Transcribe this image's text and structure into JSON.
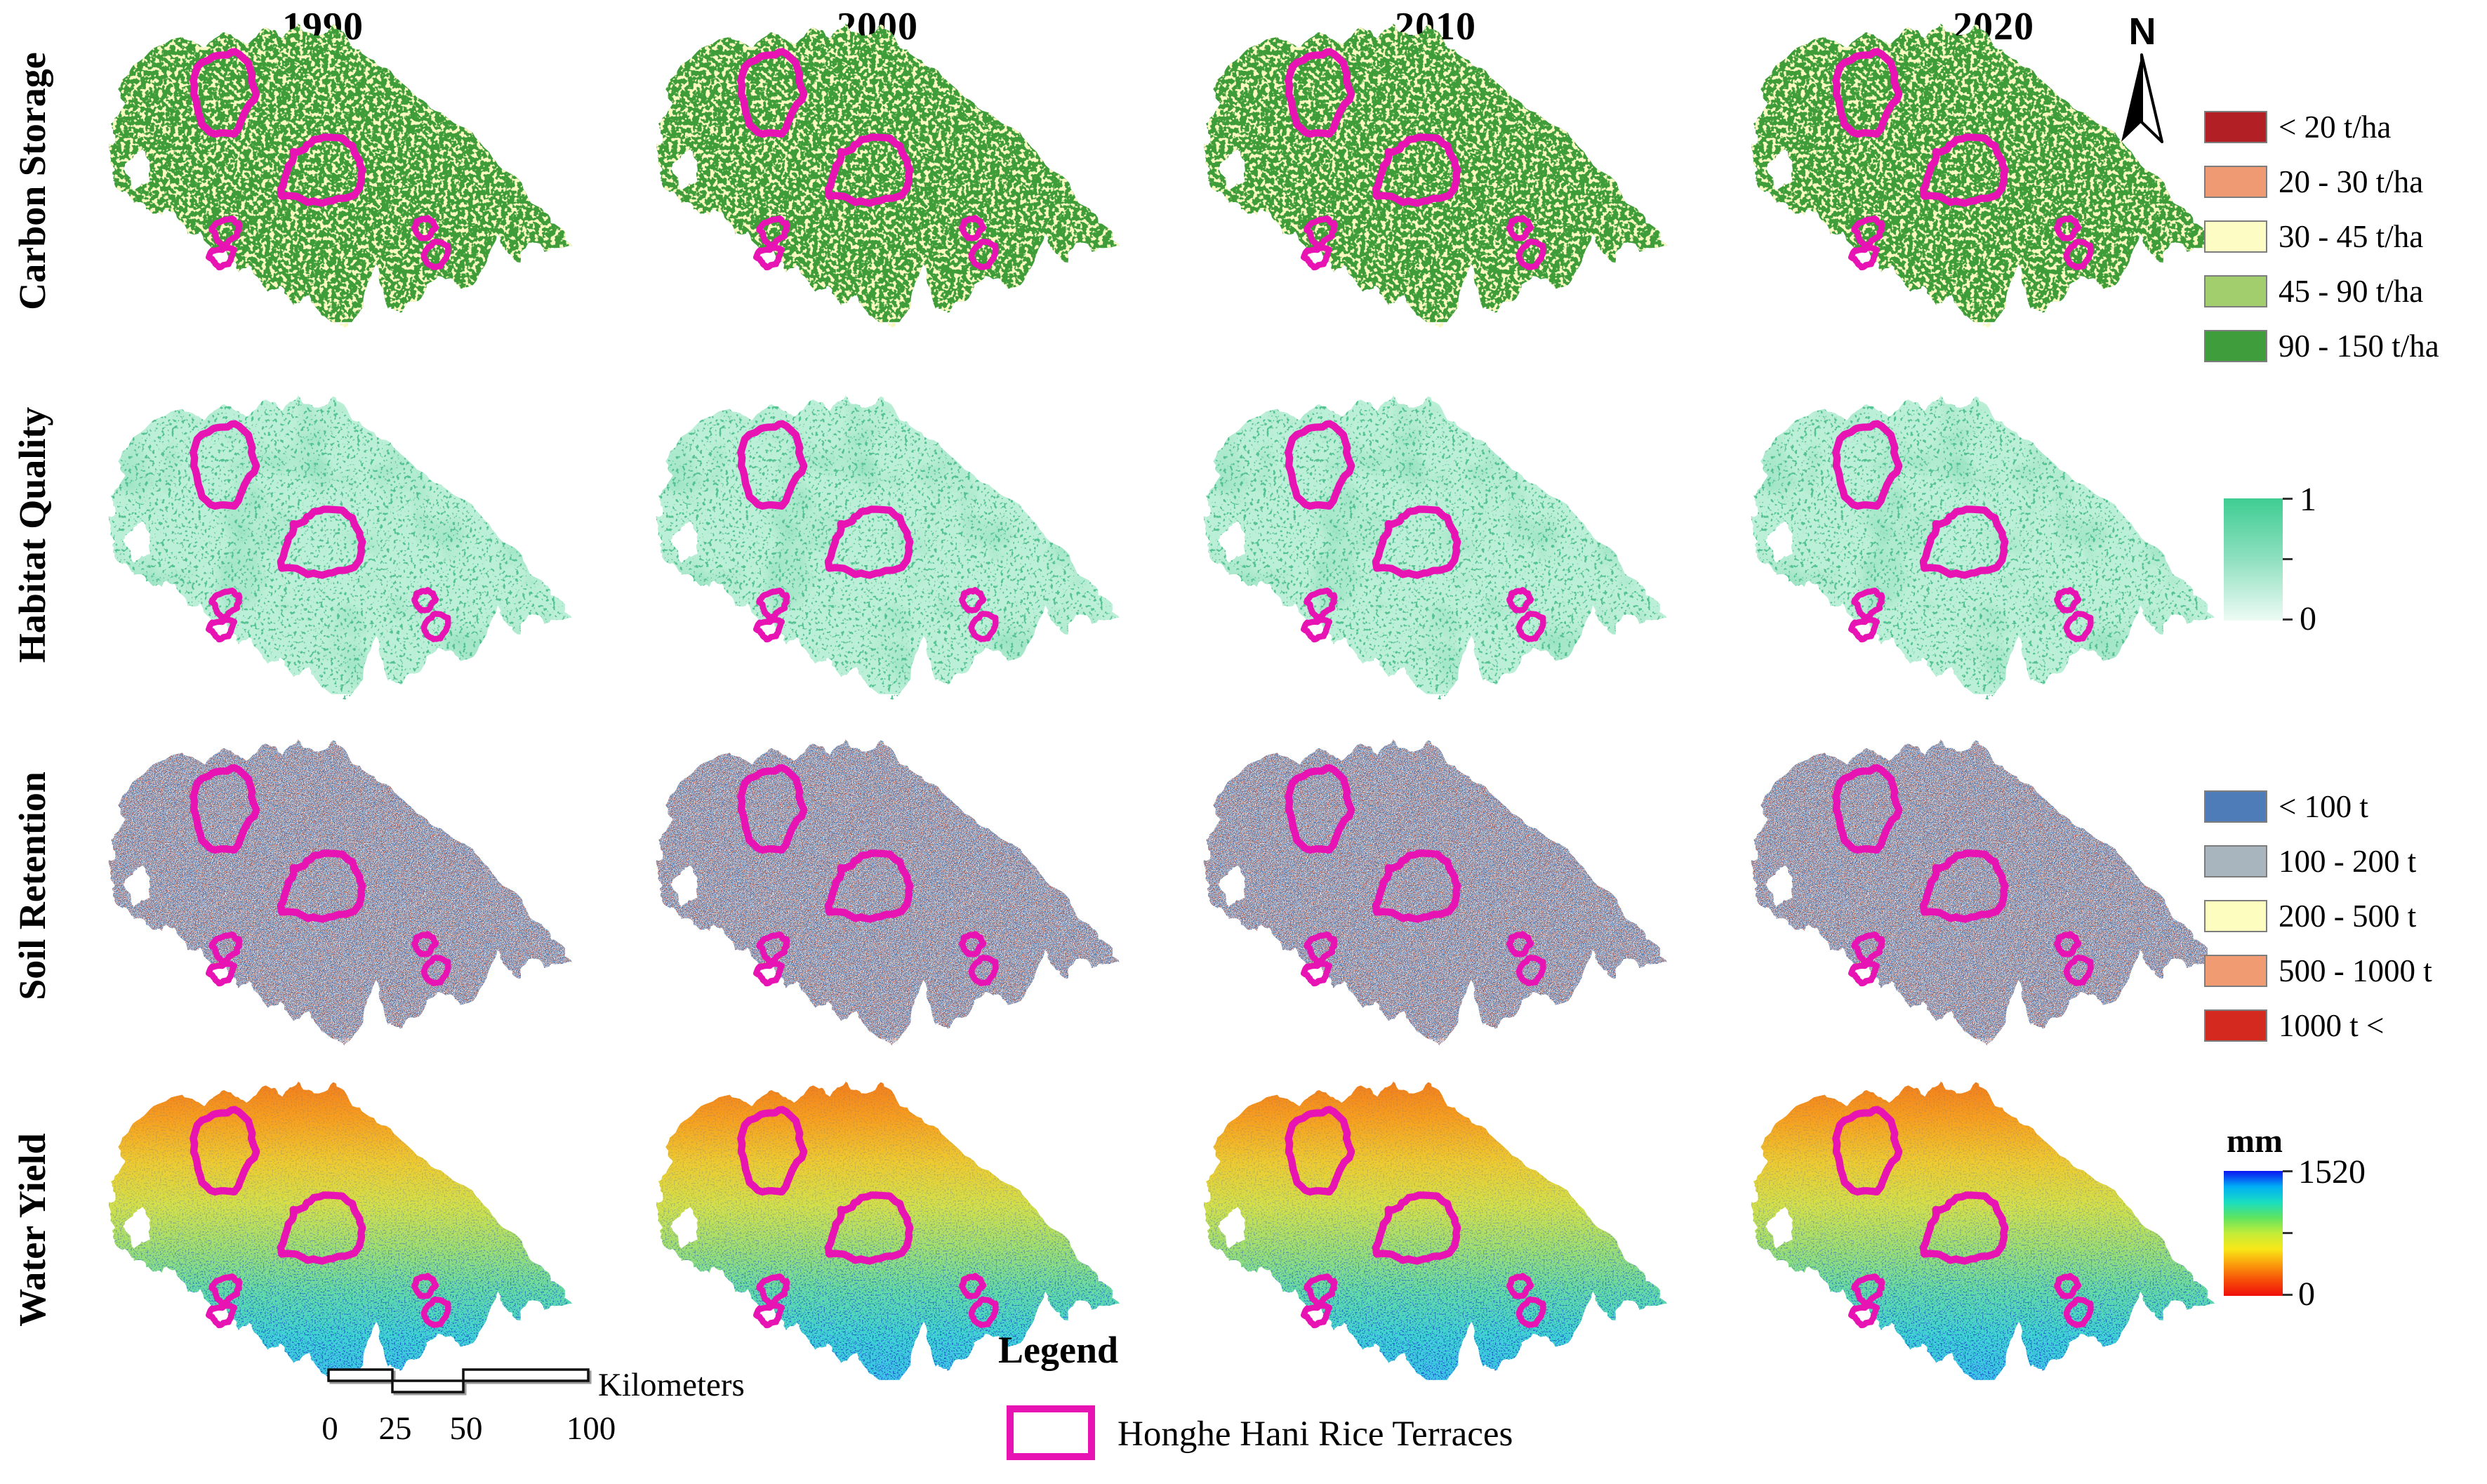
{
  "figure": {
    "years": [
      "1990",
      "2000",
      "2010",
      "2020"
    ],
    "row_labels": [
      "Carbon Storage",
      "Habitat Quality",
      "Soil Retention",
      "Water Yield"
    ],
    "north_arrow_label": "N"
  },
  "legends": {
    "carbon_storage": {
      "items": [
        {
          "label": "< 20 t/ha",
          "color": "#B22025"
        },
        {
          "label": "20 - 30 t/ha",
          "color": "#EF9A72"
        },
        {
          "label": "30 - 45 t/ha",
          "color": "#FCFCC4"
        },
        {
          "label": "45 - 90 t/ha",
          "color": "#A3CE6E"
        },
        {
          "label": "90 - 150 t/ha",
          "color": "#3F9E3B"
        }
      ]
    },
    "habitat_quality": {
      "max_label": "1",
      "min_label": "0",
      "gradient": [
        "#3ECD92",
        "#8FE0C0",
        "#EDFBF4"
      ]
    },
    "soil_retention": {
      "items": [
        {
          "label": "< 100 t",
          "color": "#4D7CB9"
        },
        {
          "label": "100 - 200 t",
          "color": "#A9B5BE"
        },
        {
          "label": "200 - 500 t",
          "color": "#FDFDC0"
        },
        {
          "label": "500 - 1000 t",
          "color": "#F09B72"
        },
        {
          "label": "1000 t <",
          "color": "#D3291F"
        }
      ]
    },
    "water_yield": {
      "title": "mm",
      "max_label": "1520",
      "min_label": "0",
      "gradient": [
        "#0B13F2",
        "#00AEF5",
        "#19DDC1",
        "#5FE45F",
        "#C3EC39",
        "#F8E817",
        "#FB9B0C",
        "#F64E07",
        "#EF0E0B"
      ]
    }
  },
  "scale_bar": {
    "tick_labels": [
      "0",
      "25",
      "50",
      "100"
    ],
    "unit_label": "Kilometers"
  },
  "map_legend": {
    "title": "Legend",
    "items": [
      {
        "label": "Honghe Hani Rice Terraces",
        "outline_color": "#E713B2"
      }
    ]
  },
  "map_style": {
    "terrace_outline": "#E713B2",
    "carbon": {
      "base": "#3E9C39",
      "speckle": "#FAF9C0"
    },
    "habitat": {
      "base": "#BCEFD7",
      "speckle": "#4FC08F",
      "patch": "#7ED8B2"
    },
    "soil": {
      "base": "#8AA0BD",
      "speckle_blue": "#3F6FB0",
      "speckle_white": "#EDF0F3",
      "speckle_orange": "#D4643C",
      "speckle_red": "#B8271E"
    },
    "water": {
      "gradient_north_to_south": [
        "#F2791B",
        "#F8A01E",
        "#EFCB30",
        "#D4E04A",
        "#9FDF72",
        "#63DCA8",
        "#3FD4D4",
        "#3CC3E8"
      ],
      "speckle": "#1D50C8"
    }
  }
}
